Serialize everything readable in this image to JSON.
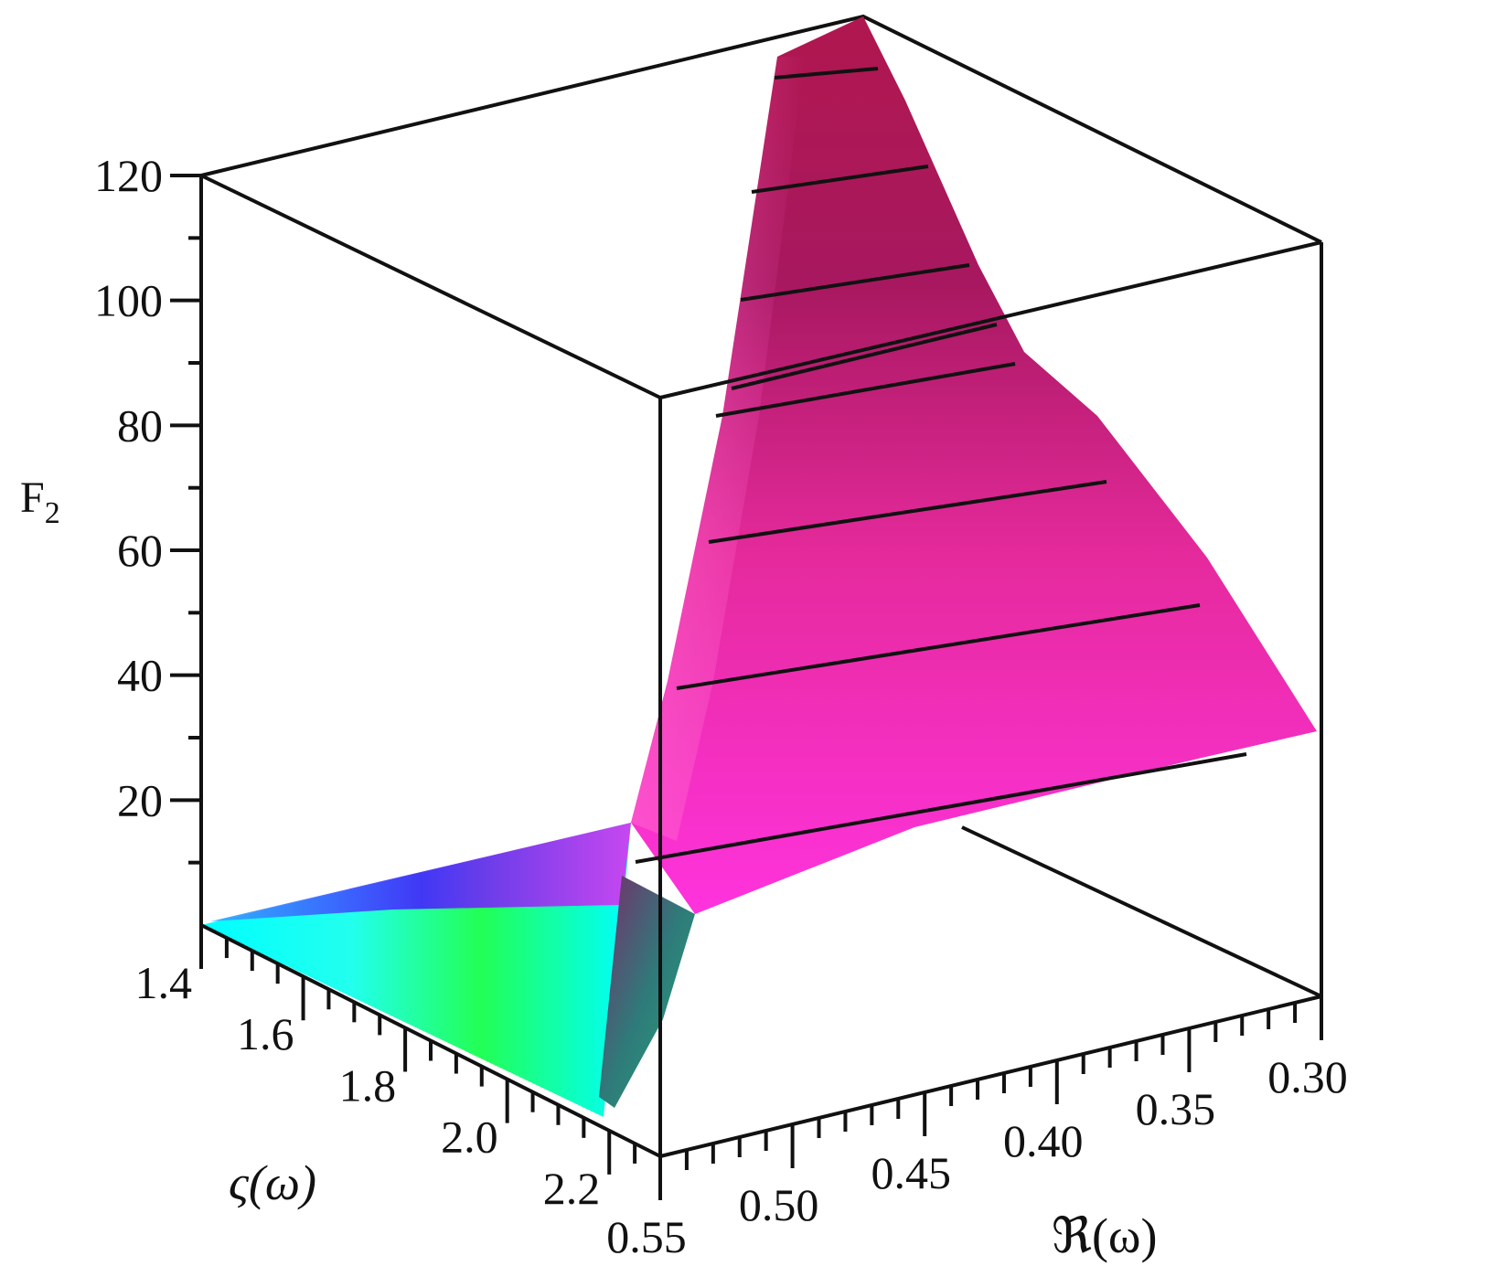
{
  "chart_data": {
    "type": "surface3d",
    "title": "",
    "z_axis": {
      "label": "F",
      "label_subscript": "2",
      "range": [
        0,
        120
      ],
      "ticks": [
        20,
        40,
        60,
        80,
        100,
        120
      ],
      "tick_labels": [
        "20",
        "40",
        "60",
        "80",
        "100",
        "120"
      ]
    },
    "y_axis": {
      "label": "ς(ω)",
      "range": [
        1.4,
        2.3
      ],
      "ticks": [
        1.4,
        1.6,
        1.8,
        2.0,
        2.2
      ],
      "tick_labels": [
        "1.4",
        "1.6",
        "1.8",
        "2.0",
        "2.2"
      ]
    },
    "x_axis": {
      "label": "ℜ(ω)",
      "range": [
        0.55,
        0.3
      ],
      "ticks": [
        0.55,
        0.5,
        0.45,
        0.4,
        0.35,
        0.3
      ],
      "tick_labels": [
        "0.55",
        "0.50",
        "0.45",
        "0.40",
        "0.35",
        "0.30"
      ]
    },
    "surface": {
      "description_values": {
        "peak_F2": 135,
        "floor_F2": 0
      },
      "contour_levels": [
        10,
        15,
        40,
        60,
        80,
        90,
        100,
        110,
        125
      ]
    },
    "colors": {
      "surface_low": "#00ffff",
      "surface_mid": "#00ff44",
      "surface_blue": "#5533ff",
      "surface_high": "#ff22cc",
      "surface_dark": "#8a0f4a",
      "box": "#111111"
    },
    "grid": false,
    "legend": "none"
  }
}
